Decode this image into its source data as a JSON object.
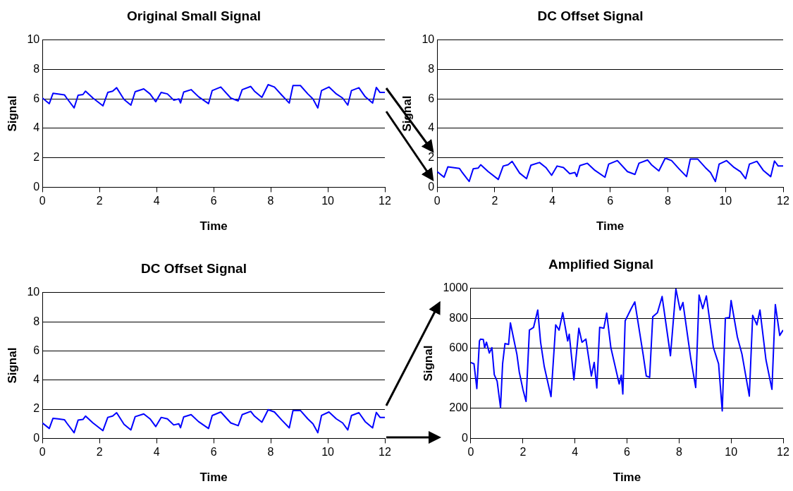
{
  "chart_data": [
    {
      "type": "line",
      "title": "Original Small Signal",
      "xlabel": "Time",
      "ylabel": "Signal",
      "grid": "y",
      "xlim": [
        0,
        12
      ],
      "ylim": [
        0,
        10
      ],
      "xticks": [
        0,
        2,
        4,
        6,
        8,
        10,
        12
      ],
      "yticks": [
        0,
        2,
        4,
        6,
        8,
        10
      ],
      "x": [
        0,
        0.24,
        0.37,
        0.55,
        0.77,
        0.85,
        1.11,
        1.25,
        1.42,
        1.51,
        1.77,
        2.12,
        2.29,
        2.46,
        2.6,
        2.86,
        3.1,
        3.25,
        3.55,
        3.77,
        3.97,
        4.16,
        4.38,
        4.6,
        4.78,
        4.84,
        4.95,
        5.21,
        5.47,
        5.82,
        5.95,
        6.25,
        6.6,
        6.86,
        7.0,
        7.3,
        7.43,
        7.69,
        7.91,
        8.13,
        8.39,
        8.65,
        8.78,
        9.04,
        9.3,
        9.48,
        9.65,
        9.78,
        10.04,
        10.3,
        10.52,
        10.7,
        10.83,
        11.09,
        11.31,
        11.57,
        11.7,
        11.83,
        12
      ],
      "series": [
        {
          "color": "#0000ff",
          "values": [
            6.06,
            5.68,
            6.38,
            6.34,
            6.28,
            6.06,
            5.39,
            6.25,
            6.3,
            6.53,
            6.06,
            5.53,
            6.44,
            6.53,
            6.76,
            5.96,
            5.58,
            6.49,
            6.68,
            6.34,
            5.81,
            6.44,
            6.34,
            5.92,
            6.0,
            5.73,
            6.47,
            6.63,
            6.15,
            5.68,
            6.57,
            6.81,
            6.06,
            5.87,
            6.63,
            6.85,
            6.53,
            6.11,
            6.97,
            6.81,
            6.25,
            5.72,
            6.91,
            6.91,
            6.34,
            6.0,
            5.39,
            6.57,
            6.81,
            6.34,
            6.06,
            5.58,
            6.57,
            6.76,
            6.15,
            5.72,
            6.78,
            6.44,
            6.44
          ]
        }
      ]
    },
    {
      "type": "line",
      "title": "DC Offset Signal",
      "xlabel": "Time",
      "ylabel": "Signal",
      "grid": "y",
      "xlim": [
        0,
        12
      ],
      "ylim": [
        0,
        10
      ],
      "xticks": [
        0,
        2,
        4,
        6,
        8,
        10,
        12
      ],
      "yticks": [
        0,
        2,
        4,
        6,
        8,
        10
      ],
      "x": [
        0,
        0.24,
        0.37,
        0.55,
        0.77,
        0.85,
        1.11,
        1.25,
        1.42,
        1.51,
        1.77,
        2.12,
        2.29,
        2.46,
        2.6,
        2.86,
        3.1,
        3.25,
        3.55,
        3.77,
        3.97,
        4.16,
        4.38,
        4.6,
        4.78,
        4.84,
        4.95,
        5.21,
        5.47,
        5.82,
        5.95,
        6.25,
        6.6,
        6.86,
        7.0,
        7.3,
        7.43,
        7.69,
        7.91,
        8.13,
        8.39,
        8.65,
        8.78,
        9.04,
        9.3,
        9.48,
        9.65,
        9.78,
        10.04,
        10.3,
        10.52,
        10.7,
        10.83,
        11.09,
        11.31,
        11.57,
        11.7,
        11.83,
        12
      ],
      "series": [
        {
          "color": "#0000ff",
          "values": [
            1.06,
            0.68,
            1.38,
            1.34,
            1.28,
            1.06,
            0.39,
            1.25,
            1.3,
            1.53,
            1.06,
            0.53,
            1.44,
            1.53,
            1.76,
            0.96,
            0.58,
            1.49,
            1.68,
            1.34,
            0.81,
            1.44,
            1.34,
            0.92,
            1.0,
            0.73,
            1.47,
            1.63,
            1.15,
            0.68,
            1.57,
            1.81,
            1.06,
            0.87,
            1.63,
            1.85,
            1.53,
            1.11,
            1.97,
            1.81,
            1.25,
            0.72,
            1.91,
            1.91,
            1.34,
            1.0,
            0.39,
            1.57,
            1.81,
            1.34,
            1.06,
            0.58,
            1.57,
            1.76,
            1.15,
            0.72,
            1.78,
            1.44,
            1.44
          ]
        }
      ]
    },
    {
      "type": "line",
      "title": "DC Offset Signal",
      "xlabel": "Time",
      "ylabel": "Signal",
      "grid": "y",
      "xlim": [
        0,
        12
      ],
      "ylim": [
        0,
        10
      ],
      "xticks": [
        0,
        2,
        4,
        6,
        8,
        10,
        12
      ],
      "yticks": [
        0,
        2,
        4,
        6,
        8,
        10
      ],
      "x": [
        0,
        0.24,
        0.37,
        0.55,
        0.77,
        0.85,
        1.11,
        1.25,
        1.42,
        1.51,
        1.77,
        2.12,
        2.29,
        2.46,
        2.6,
        2.86,
        3.1,
        3.25,
        3.55,
        3.77,
        3.97,
        4.16,
        4.38,
        4.6,
        4.78,
        4.84,
        4.95,
        5.21,
        5.47,
        5.82,
        5.95,
        6.25,
        6.6,
        6.86,
        7.0,
        7.3,
        7.43,
        7.69,
        7.91,
        8.13,
        8.39,
        8.65,
        8.78,
        9.04,
        9.3,
        9.48,
        9.65,
        9.78,
        10.04,
        10.3,
        10.52,
        10.7,
        10.83,
        11.09,
        11.31,
        11.57,
        11.7,
        11.83,
        12
      ],
      "series": [
        {
          "color": "#0000ff",
          "values": [
            1.06,
            0.68,
            1.38,
            1.34,
            1.28,
            1.06,
            0.39,
            1.25,
            1.3,
            1.53,
            1.06,
            0.53,
            1.44,
            1.53,
            1.76,
            0.96,
            0.58,
            1.49,
            1.68,
            1.34,
            0.81,
            1.44,
            1.34,
            0.92,
            1.0,
            0.73,
            1.47,
            1.63,
            1.15,
            0.68,
            1.57,
            1.81,
            1.06,
            0.87,
            1.63,
            1.85,
            1.53,
            1.11,
            1.97,
            1.81,
            1.25,
            0.72,
            1.91,
            1.91,
            1.34,
            1.0,
            0.39,
            1.57,
            1.81,
            1.34,
            1.06,
            0.58,
            1.57,
            1.76,
            1.15,
            0.72,
            1.78,
            1.44,
            1.44
          ]
        }
      ]
    },
    {
      "type": "line",
      "title": "Amplified Signal",
      "xlabel": "Time",
      "ylabel": "Signal",
      "grid": "y",
      "xlim": [
        0,
        12
      ],
      "ylim": [
        0,
        1000
      ],
      "xticks": [
        0,
        2,
        4,
        6,
        8,
        10,
        12
      ],
      "yticks": [
        0,
        200,
        400,
        600,
        800,
        1000
      ],
      "x": [
        0,
        0.12,
        0.23,
        0.33,
        0.37,
        0.48,
        0.53,
        0.6,
        0.71,
        0.81,
        0.9,
        1.01,
        1.14,
        1.22,
        1.31,
        1.45,
        1.52,
        1.63,
        1.77,
        1.86,
        2.0,
        2.12,
        2.25,
        2.41,
        2.57,
        2.68,
        2.82,
        3.08,
        3.26,
        3.39,
        3.53,
        3.72,
        3.78,
        3.96,
        4.15,
        4.27,
        4.42,
        4.63,
        4.74,
        4.84,
        4.95,
        5.11,
        5.22,
        5.38,
        5.7,
        5.78,
        5.84,
        5.93,
        6.16,
        6.3,
        6.62,
        6.74,
        6.87,
        6.99,
        7.17,
        7.35,
        7.67,
        7.88,
        8.04,
        8.15,
        8.45,
        8.64,
        8.77,
        8.91,
        9.05,
        9.32,
        9.52,
        9.66,
        9.78,
        9.94,
        10.0,
        10.24,
        10.42,
        10.7,
        10.83,
        10.99,
        11.11,
        11.34,
        11.57,
        11.7,
        11.87,
        12
      ],
      "series": [
        {
          "color": "#0000ff",
          "values": [
            506,
            497,
            332,
            650,
            662,
            659,
            605,
            641,
            569,
            605,
            425,
            381,
            206,
            497,
            632,
            626,
            770,
            677,
            560,
            443,
            327,
            246,
            722,
            740,
            856,
            641,
            479,
            278,
            757,
            722,
            838,
            650,
            695,
            390,
            734,
            641,
            662,
            416,
            506,
            336,
            740,
            734,
            835,
            605,
            363,
            422,
            296,
            784,
            865,
            910,
            560,
            416,
            407,
            811,
            838,
            946,
            551,
            996,
            856,
            906,
            533,
            339,
            955,
            865,
            950,
            605,
            497,
            183,
            802,
            806,
            919,
            677,
            560,
            282,
            820,
            757,
            856,
            524,
            327,
            892,
            686,
            722
          ]
        }
      ]
    }
  ]
}
